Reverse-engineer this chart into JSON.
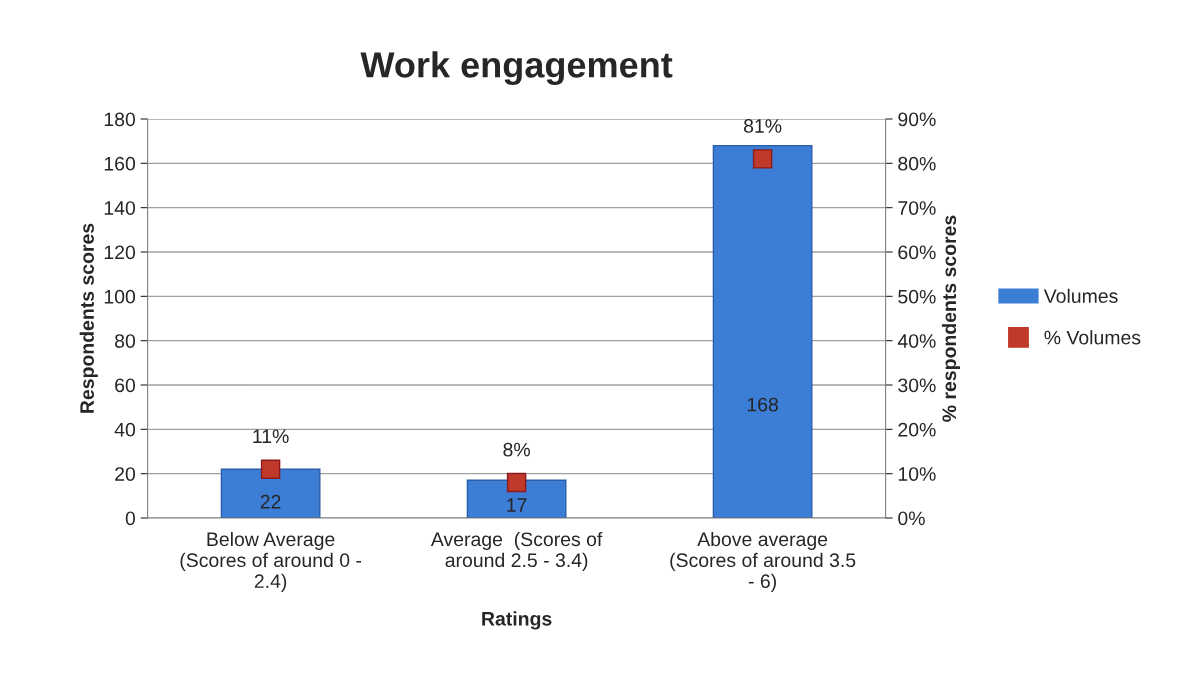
{
  "chart_data": {
    "type": "bar",
    "title": "Work engagement",
    "xlabel": "Ratings",
    "ylabel": "Respondents scores",
    "y2label": "% respondents scores",
    "categories": [
      "Below Average\n(Scores of around 0 -\n2.4)",
      "Average  (Scores of\naround 2.5 - 3.4)",
      "Above average\n(Scores of around 3.5\n- 6)"
    ],
    "series": [
      {
        "name": "Volumes",
        "color": "#3c7dd6",
        "values": [
          22,
          17,
          168
        ],
        "value_labels": [
          "22",
          "17",
          "168"
        ]
      },
      {
        "name": "% Volumes",
        "type": "scatter",
        "axis": "y2",
        "marker": "square",
        "color": "#c0392b",
        "values": [
          11,
          8,
          81
        ],
        "value_labels": [
          "11%",
          "8%",
          "81%"
        ]
      }
    ],
    "ylim": [
      0,
      180
    ],
    "yticks": [
      0,
      20,
      40,
      60,
      80,
      100,
      120,
      140,
      160,
      180
    ],
    "y2lim": [
      0,
      90
    ],
    "y2ticks": [
      {
        "value": 0,
        "label": "0%"
      },
      {
        "value": 10,
        "label": "10%"
      },
      {
        "value": 20,
        "label": "20%"
      },
      {
        "value": 30,
        "label": "30%"
      },
      {
        "value": 40,
        "label": "40%"
      },
      {
        "value": 50,
        "label": "50%"
      },
      {
        "value": 60,
        "label": "60%"
      },
      {
        "value": 70,
        "label": "70%"
      },
      {
        "value": 80,
        "label": "80%"
      },
      {
        "value": 90,
        "label": "90%"
      }
    ],
    "grid": "y",
    "legend": "right"
  }
}
